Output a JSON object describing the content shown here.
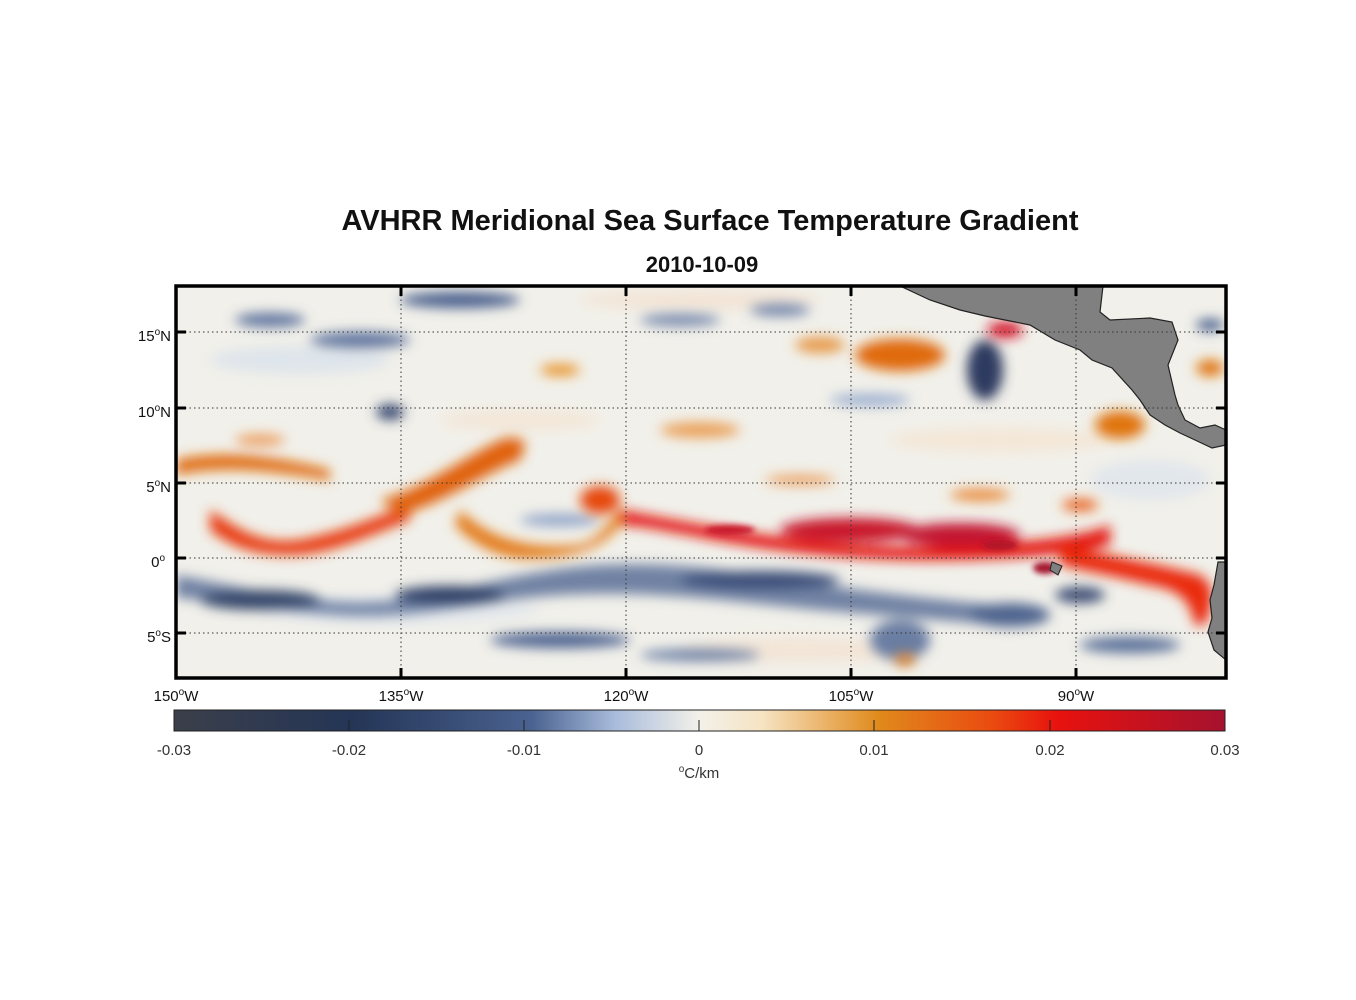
{
  "title": "AVHRR Meridional Sea Surface Temperature Gradient",
  "subtitle": "2010-10-09",
  "lon_ticks": [
    {
      "deg": "150",
      "hemi": "W"
    },
    {
      "deg": "135",
      "hemi": "W"
    },
    {
      "deg": "120",
      "hemi": "W"
    },
    {
      "deg": "105",
      "hemi": "W"
    },
    {
      "deg": "90",
      "hemi": "W"
    }
  ],
  "lat_ticks": [
    {
      "deg": "15",
      "hemi": "N"
    },
    {
      "deg": "10",
      "hemi": "N"
    },
    {
      "deg": "5",
      "hemi": "N"
    },
    {
      "deg": "0",
      "hemi": ""
    },
    {
      "deg": "5",
      "hemi": "S"
    }
  ],
  "map_extent": {
    "lon_min": -150,
    "lon_max": -80,
    "lat_min": -8,
    "lat_max": 18
  },
  "colorbar": {
    "ticks": [
      "-0.03",
      "-0.02",
      "-0.01",
      "0",
      "0.01",
      "0.02",
      "0.03"
    ],
    "min": -0.03,
    "max": 0.03,
    "units_symbol": "o",
    "units_label": "C/km"
  },
  "colors": {
    "land": "#808080",
    "strong_negative": "#3b3f4a",
    "negative": "#2e4a78",
    "neutral": "#f3f1ea",
    "positive": "#e07a1a",
    "strong_positive": "#a5122e"
  }
}
